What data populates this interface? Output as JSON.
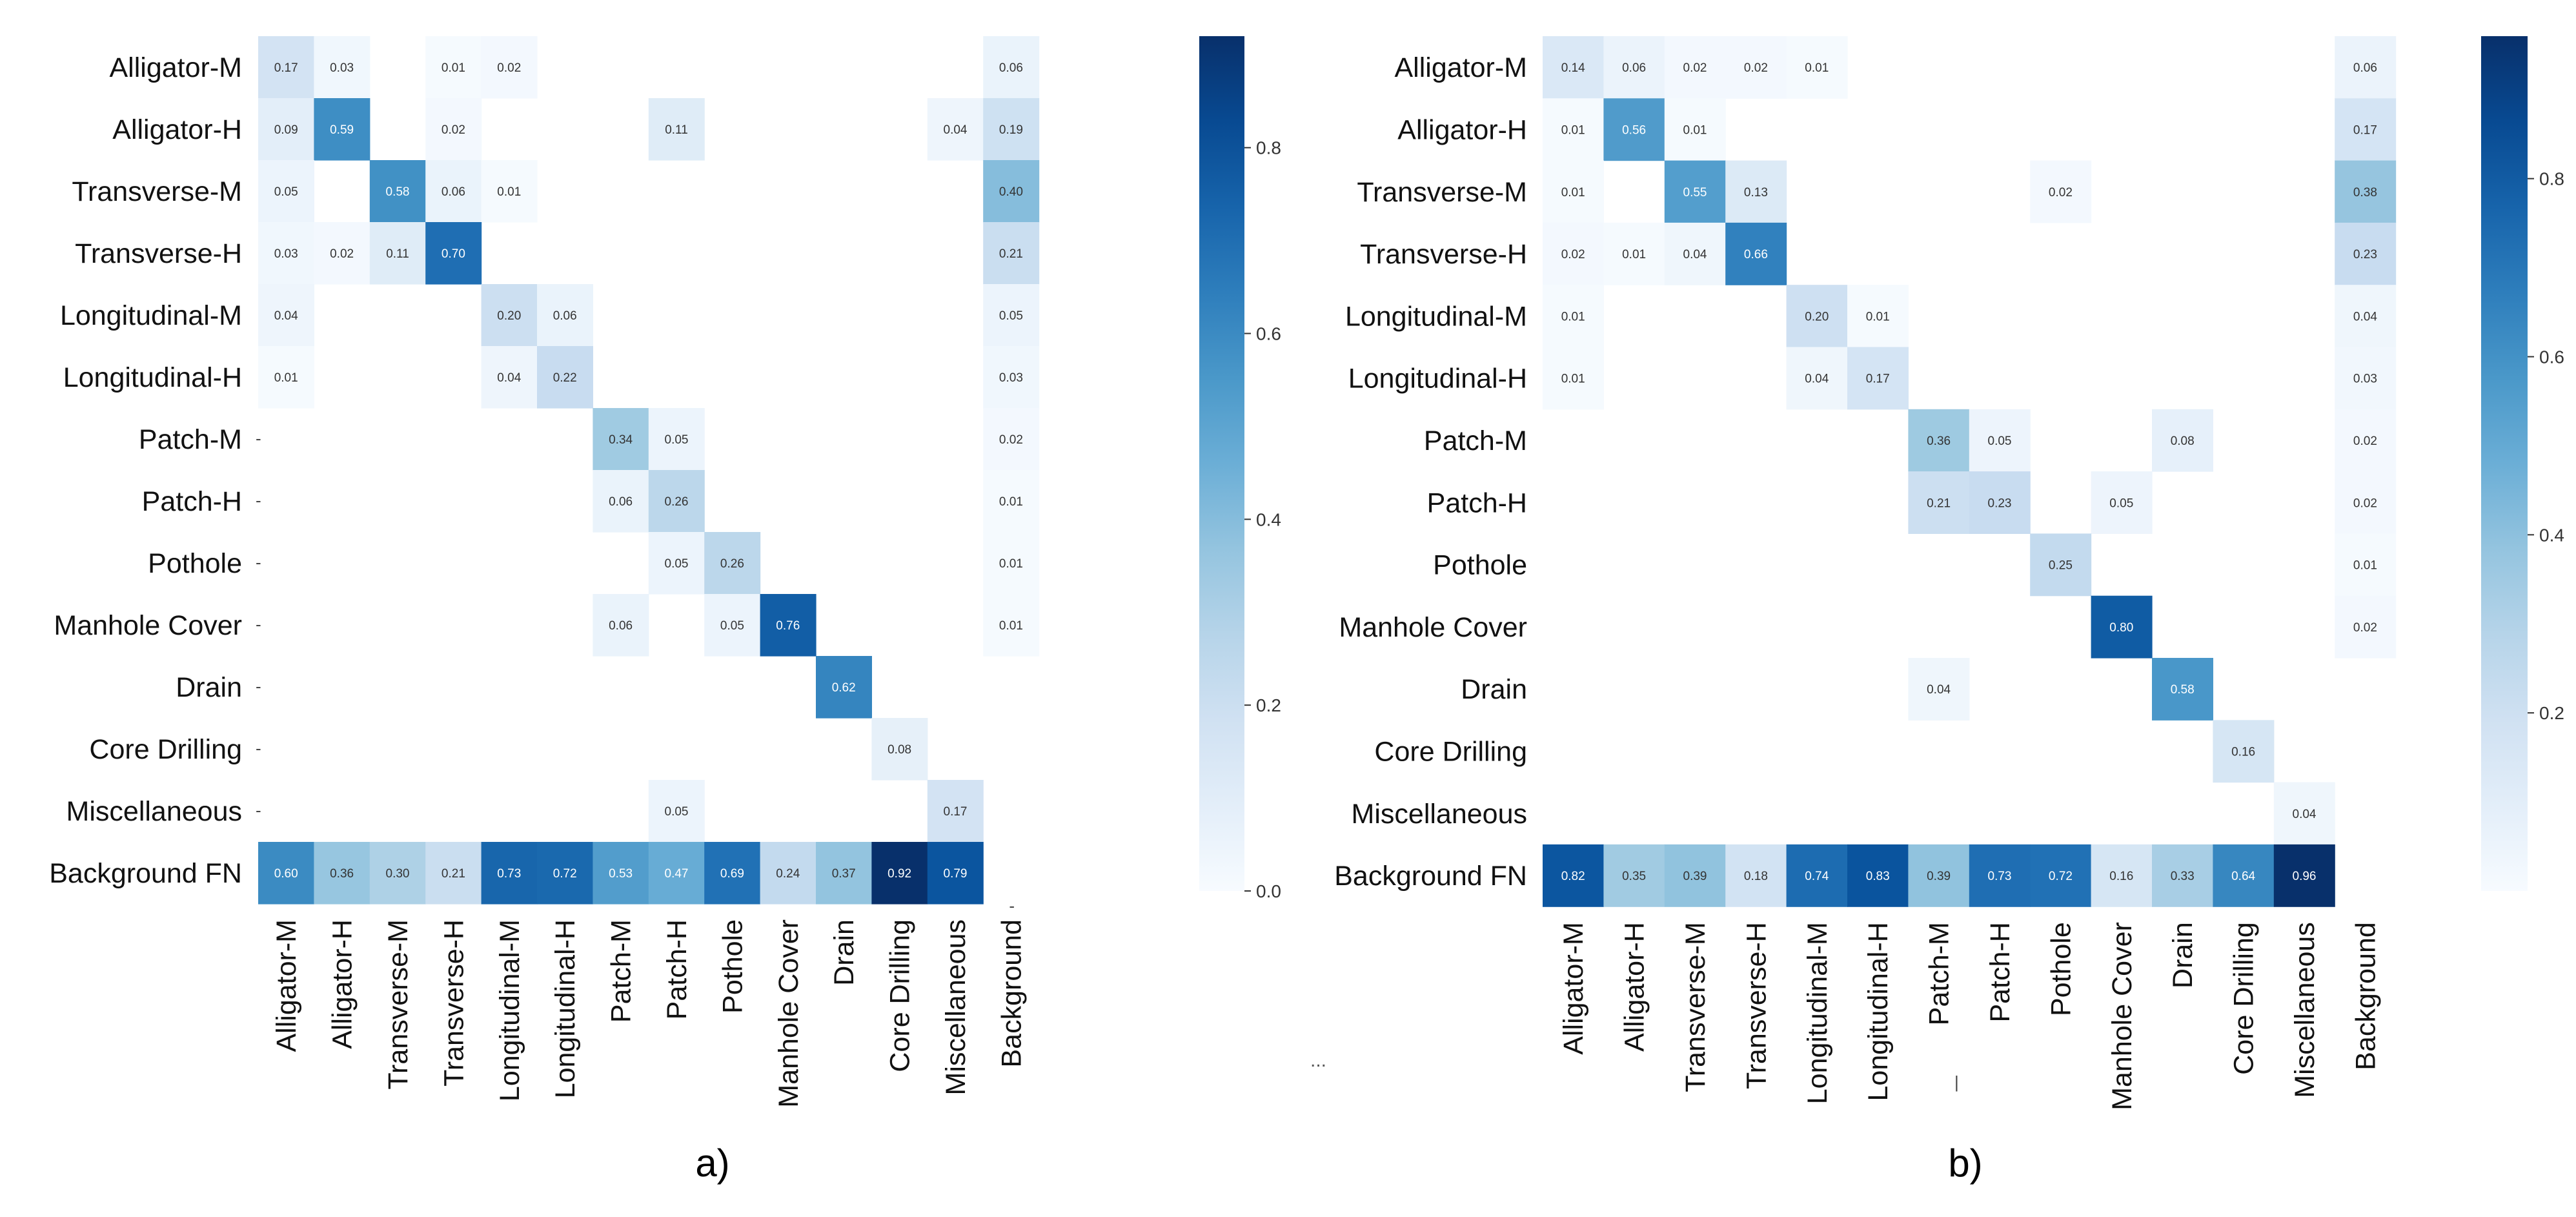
{
  "chart_data": [
    {
      "type": "heatmap",
      "panel_label": "a)",
      "row_labels": [
        "Alligator-M",
        "Alligator-H",
        "Transverse-M",
        "Transverse-H",
        "Longitudinal-M",
        "Longitudinal-H",
        "Patch-M",
        "Patch-H",
        "Pothole",
        "Manhole Cover",
        "Drain",
        "Core Drilling",
        "Miscellaneous",
        "Background FN"
      ],
      "col_labels": [
        "Alligator-M",
        "Alligator-H",
        "Transverse-M",
        "Transverse-H",
        "Longitudinal-M",
        "Longitudinal-H",
        "Patch-M",
        "Patch-H",
        "Pothole",
        "Manhole Cover",
        "Drain",
        "Core Drilling",
        "Miscellaneous",
        "Background"
      ],
      "values": [
        [
          0.17,
          0.03,
          null,
          0.01,
          0.02,
          null,
          null,
          null,
          null,
          null,
          null,
          null,
          null,
          0.06
        ],
        [
          0.09,
          0.59,
          null,
          0.02,
          null,
          null,
          null,
          0.11,
          null,
          null,
          null,
          null,
          0.04,
          0.19
        ],
        [
          0.05,
          null,
          0.58,
          0.06,
          0.01,
          null,
          null,
          null,
          null,
          null,
          null,
          null,
          null,
          0.4
        ],
        [
          0.03,
          0.02,
          0.11,
          0.7,
          null,
          null,
          null,
          null,
          null,
          null,
          null,
          null,
          null,
          0.21
        ],
        [
          0.04,
          null,
          null,
          null,
          0.2,
          0.06,
          null,
          null,
          null,
          null,
          null,
          null,
          null,
          0.05
        ],
        [
          0.01,
          null,
          null,
          null,
          0.04,
          0.22,
          null,
          null,
          null,
          null,
          null,
          null,
          null,
          0.03
        ],
        [
          null,
          null,
          null,
          null,
          null,
          null,
          0.34,
          0.05,
          null,
          null,
          null,
          null,
          null,
          0.02
        ],
        [
          null,
          null,
          null,
          null,
          null,
          null,
          0.06,
          0.26,
          null,
          null,
          null,
          null,
          null,
          0.01
        ],
        [
          null,
          null,
          null,
          null,
          null,
          null,
          null,
          0.05,
          0.26,
          null,
          null,
          null,
          null,
          0.01
        ],
        [
          null,
          null,
          null,
          null,
          null,
          null,
          0.06,
          null,
          0.05,
          0.76,
          null,
          null,
          null,
          0.01
        ],
        [
          null,
          null,
          null,
          null,
          null,
          null,
          null,
          null,
          null,
          null,
          0.62,
          null,
          null,
          null
        ],
        [
          null,
          null,
          null,
          null,
          null,
          null,
          null,
          null,
          null,
          null,
          null,
          0.08,
          null,
          null
        ],
        [
          null,
          null,
          null,
          null,
          null,
          null,
          null,
          0.05,
          null,
          null,
          null,
          null,
          0.17,
          null
        ],
        [
          0.6,
          0.36,
          0.3,
          0.21,
          0.73,
          0.72,
          0.53,
          0.47,
          0.69,
          0.24,
          0.37,
          0.92,
          0.79,
          null
        ]
      ],
      "row_dash_text": "-",
      "col_dash_text": "-",
      "colorbar": {
        "min": 0.0,
        "max": 0.92,
        "ticks": [
          "0.0",
          "0.2",
          "0.4",
          "0.6",
          "0.8"
        ],
        "tick_values": [
          0.0,
          0.2,
          0.4,
          0.6,
          0.8
        ]
      },
      "colormap": "Blues"
    },
    {
      "type": "heatmap",
      "panel_label": "b)",
      "row_labels": [
        "Alligator-M",
        "Alligator-H",
        "Transverse-M",
        "Transverse-H",
        "Longitudinal-M",
        "Longitudinal-H",
        "Patch-M",
        "Patch-H",
        "Pothole",
        "Manhole Cover",
        "Drain",
        "Core Drilling",
        "Miscellaneous",
        "Background FN"
      ],
      "col_labels": [
        "Alligator-M",
        "Alligator-H",
        "Transverse-M",
        "Transverse-H",
        "Longitudinal-M",
        "Longitudinal-H",
        "Patch-M",
        "Patch-H",
        "Pothole",
        "Manhole Cover",
        "Drain",
        "Core Drilling",
        "Miscellaneous",
        "Background"
      ],
      "values": [
        [
          0.14,
          0.06,
          0.02,
          0.02,
          0.01,
          null,
          null,
          null,
          null,
          null,
          null,
          null,
          null,
          0.06
        ],
        [
          0.01,
          0.56,
          0.01,
          null,
          null,
          null,
          null,
          null,
          null,
          null,
          null,
          null,
          null,
          0.17
        ],
        [
          0.01,
          null,
          0.55,
          0.13,
          null,
          null,
          null,
          null,
          0.02,
          null,
          null,
          null,
          null,
          0.38
        ],
        [
          0.02,
          0.01,
          0.04,
          0.66,
          null,
          null,
          null,
          null,
          null,
          null,
          null,
          null,
          null,
          0.23
        ],
        [
          0.01,
          null,
          null,
          null,
          0.2,
          0.01,
          null,
          null,
          null,
          null,
          null,
          null,
          null,
          0.04
        ],
        [
          0.01,
          null,
          null,
          null,
          0.04,
          0.17,
          null,
          null,
          null,
          null,
          null,
          null,
          null,
          0.03
        ],
        [
          null,
          null,
          null,
          null,
          null,
          null,
          0.36,
          0.05,
          null,
          null,
          0.08,
          null,
          null,
          0.02
        ],
        [
          null,
          null,
          null,
          null,
          null,
          null,
          0.21,
          0.23,
          null,
          0.05,
          null,
          null,
          null,
          0.02
        ],
        [
          null,
          null,
          null,
          null,
          null,
          null,
          null,
          null,
          0.25,
          null,
          null,
          null,
          null,
          0.01
        ],
        [
          null,
          null,
          null,
          null,
          null,
          null,
          null,
          null,
          null,
          0.8,
          null,
          null,
          null,
          0.02
        ],
        [
          null,
          null,
          null,
          null,
          null,
          null,
          0.04,
          null,
          null,
          null,
          0.58,
          null,
          null,
          null
        ],
        [
          null,
          null,
          null,
          null,
          null,
          null,
          null,
          null,
          null,
          null,
          null,
          0.16,
          null,
          null
        ],
        [
          null,
          null,
          null,
          null,
          null,
          null,
          null,
          null,
          null,
          null,
          null,
          null,
          0.04,
          null
        ],
        [
          0.82,
          0.35,
          0.39,
          0.18,
          0.74,
          0.83,
          0.39,
          0.73,
          0.72,
          0.16,
          0.33,
          0.64,
          0.96,
          null
        ]
      ],
      "colorbar": {
        "min": 0.0,
        "max": 0.96,
        "ticks": [
          "0.2",
          "0.4",
          "0.6",
          "0.8"
        ],
        "tick_values": [
          0.2,
          0.4,
          0.6,
          0.8
        ]
      },
      "colormap": "Blues"
    }
  ],
  "stray_marks": {
    "dots": "...",
    "tick": "|"
  }
}
